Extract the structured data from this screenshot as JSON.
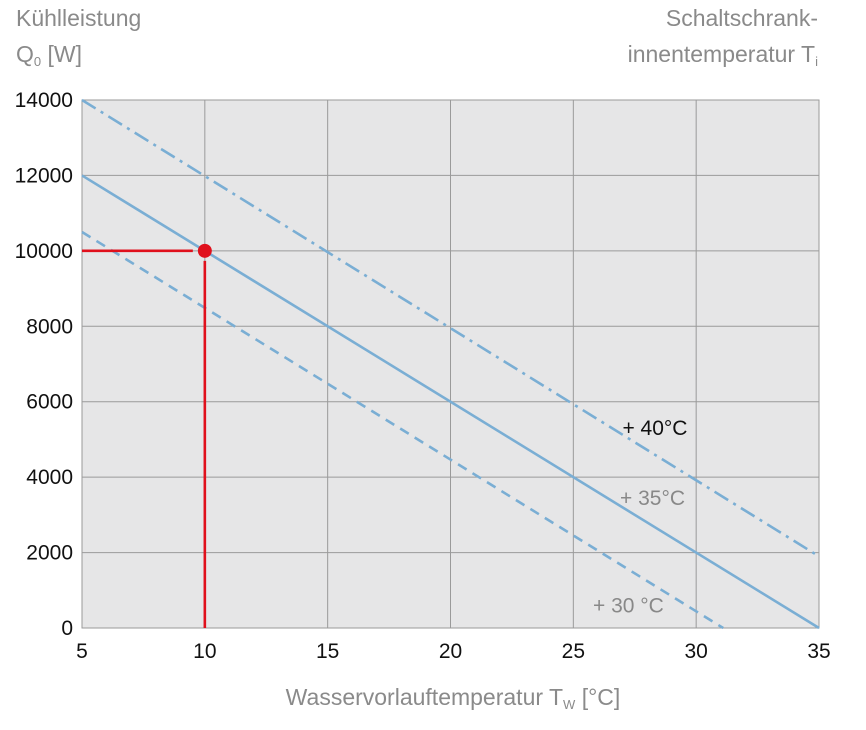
{
  "chart_data": {
    "type": "line",
    "ylabel": "Kühlleistung",
    "ylabel_symbol": "Q",
    "ylabel_sub": "0",
    "ylabel_unit": "[W]",
    "legend_title_line1": "Schaltschrank-",
    "legend_title_line2": "innentemperatur T",
    "legend_title_sub": "i",
    "xlabel": "Wasservorlauftemperatur T",
    "xlabel_sub": "W",
    "xlabel_unit": "[°C]",
    "xlim": [
      5,
      35
    ],
    "ylim": [
      0,
      14000
    ],
    "xticks": [
      5,
      10,
      15,
      20,
      25,
      30,
      35
    ],
    "yticks": [
      0,
      2000,
      4000,
      6000,
      8000,
      10000,
      12000,
      14000
    ],
    "grid": true,
    "series": [
      {
        "name": "+ 40°C",
        "style": "dashdot",
        "x": [
          5,
          35
        ],
        "y": [
          14000,
          1900
        ],
        "label_color": "#111111"
      },
      {
        "name": "+ 35°C",
        "style": "solid",
        "x": [
          5,
          35
        ],
        "y": [
          12000,
          0
        ],
        "label_color": "#888888"
      },
      {
        "name": "+ 30 °C",
        "style": "dashed",
        "x": [
          5,
          31.1
        ],
        "y": [
          10500,
          0
        ],
        "label_color": "#888888"
      }
    ],
    "series_label_pos": [
      {
        "x": 27.0,
        "y": 5300
      },
      {
        "x": 26.9,
        "y": 3450
      },
      {
        "x": 25.8,
        "y": 590
      }
    ],
    "marker": {
      "x": 10,
      "y": 10000
    },
    "colors": {
      "line": "#7aaed4",
      "marker": "#e0101c",
      "plot_bg": "#e6e6e7",
      "grid": "#9a9a9a"
    }
  }
}
